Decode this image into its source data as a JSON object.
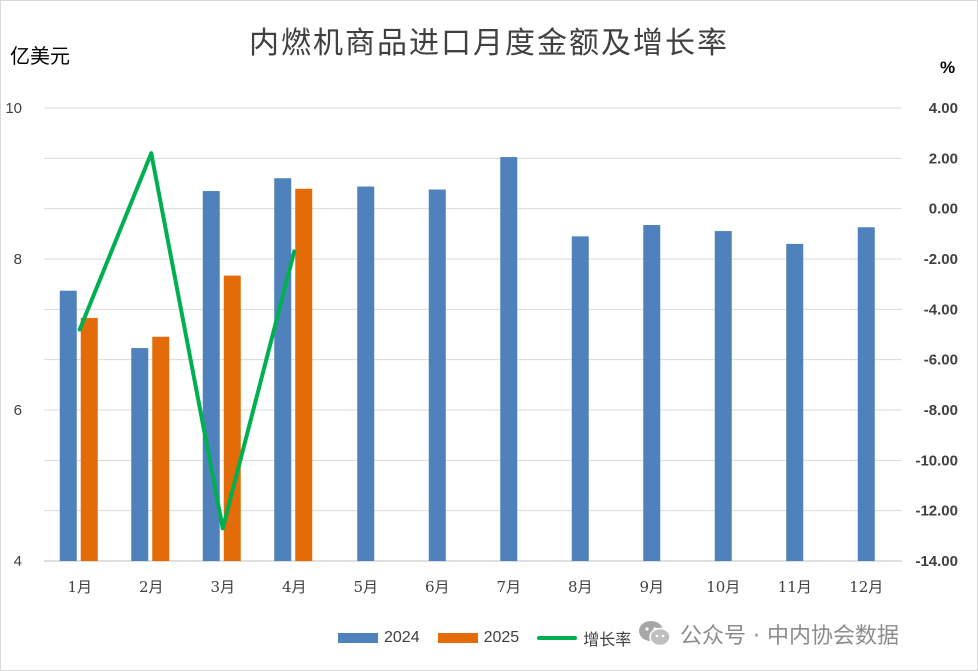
{
  "chart_data": {
    "type": "bar",
    "title": "内燃机商品进口月度金额及增长率",
    "y_left_label": "亿美元",
    "y_right_label": "%",
    "categories": [
      "1月",
      "2月",
      "3月",
      "4月",
      "5月",
      "6月",
      "7月",
      "8月",
      "9月",
      "10月",
      "11月",
      "12月"
    ],
    "y_left_range": [
      4,
      10
    ],
    "y_left_ticks": [
      "4",
      "6",
      "8",
      "10"
    ],
    "y_right_range": [
      -14,
      4
    ],
    "y_right_ticks": [
      "-14.00",
      "-12.00",
      "-10.00",
      "-8.00",
      "-6.00",
      "-4.00",
      "-2.00",
      "0.00",
      "2.00",
      "4.00"
    ],
    "grid": true,
    "legend_position": "bottom",
    "series": [
      {
        "name": "2024",
        "kind": "bar",
        "axis": "left",
        "color": "#4f81bd",
        "values": [
          7.58,
          6.82,
          8.9,
          9.07,
          8.96,
          8.92,
          9.35,
          8.3,
          8.45,
          8.37,
          8.2,
          8.42
        ]
      },
      {
        "name": "2025",
        "kind": "bar",
        "axis": "left",
        "color": "#e36c09",
        "values": [
          7.22,
          6.97,
          7.78,
          8.93,
          null,
          null,
          null,
          null,
          null,
          null,
          null,
          null
        ]
      },
      {
        "name": "增长率",
        "kind": "line",
        "axis": "right",
        "color": "#00b050",
        "values": [
          -4.8,
          2.2,
          -12.7,
          -1.7,
          null,
          null,
          null,
          null,
          null,
          null,
          null,
          null
        ]
      }
    ]
  },
  "watermark": {
    "text": "公众号 · 中内协会数据",
    "icon": "wechat-icon"
  }
}
